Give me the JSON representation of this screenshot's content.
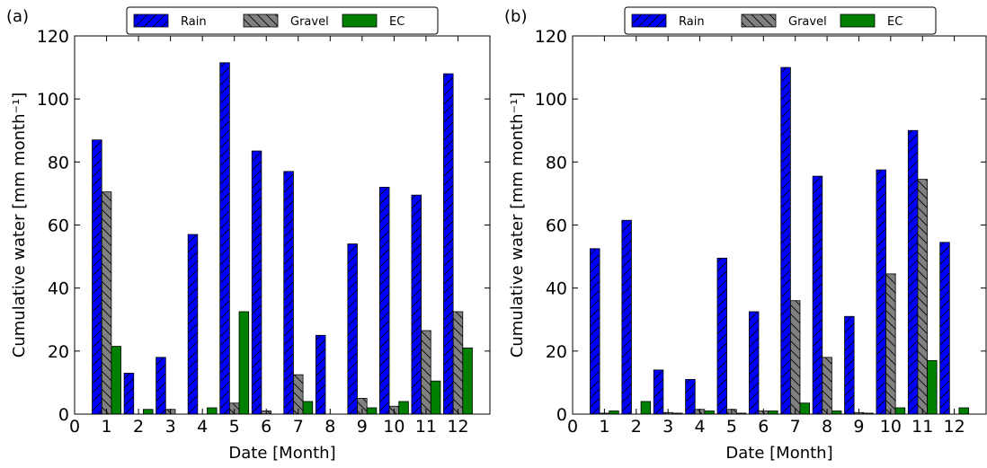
{
  "chart_data": [
    {
      "type": "bar",
      "panel_label": "(a)",
      "xlabel": "Date [Month]",
      "ylabel": "Cumulative water [mm month⁻¹]",
      "xlim": [
        0,
        13
      ],
      "ylim": [
        0,
        120
      ],
      "xticks": [
        "0",
        "1",
        "2",
        "3",
        "4",
        "5",
        "6",
        "7",
        "8",
        "9",
        "10",
        "11",
        "12"
      ],
      "yticks": [
        "0",
        "20",
        "40",
        "60",
        "80",
        "100",
        "120"
      ],
      "categories": [
        1,
        2,
        3,
        4,
        5,
        6,
        7,
        8,
        9,
        10,
        11,
        12
      ],
      "legend_position": "top-center",
      "grid": false,
      "series": [
        {
          "name": "Rain",
          "color": "#0000ff",
          "hatch": "forward",
          "values": [
            87,
            13,
            18,
            57,
            111.5,
            83.5,
            77,
            25,
            54,
            72,
            69.5,
            108
          ]
        },
        {
          "name": "Gravel",
          "color": "#808080",
          "hatch": "back",
          "values": [
            70.5,
            0,
            1.5,
            0,
            3.5,
            1,
            12.5,
            0,
            5,
            2.5,
            26.5,
            32.5
          ]
        },
        {
          "name": "EC",
          "color": "#008000",
          "hatch": "none",
          "values": [
            21.5,
            1.5,
            0,
            2,
            32.5,
            0,
            4,
            0,
            2,
            4,
            10.5,
            21
          ]
        }
      ]
    },
    {
      "type": "bar",
      "panel_label": "(b)",
      "xlabel": "Date [Month]",
      "ylabel": "Cumulative water [mm month⁻¹]",
      "xlim": [
        0,
        13
      ],
      "ylim": [
        0,
        120
      ],
      "xticks": [
        "0",
        "1",
        "2",
        "3",
        "4",
        "5",
        "6",
        "7",
        "8",
        "9",
        "10",
        "11",
        "12"
      ],
      "yticks": [
        "0",
        "20",
        "40",
        "60",
        "80",
        "100",
        "120"
      ],
      "categories": [
        1,
        2,
        3,
        4,
        5,
        6,
        7,
        8,
        9,
        10,
        11,
        12
      ],
      "legend_position": "top-center",
      "grid": false,
      "series": [
        {
          "name": "Rain",
          "color": "#0000ff",
          "hatch": "forward",
          "values": [
            52.5,
            61.5,
            14,
            11,
            49.5,
            32.5,
            110,
            75.5,
            31,
            77.5,
            90,
            54.5
          ]
        },
        {
          "name": "Gravel",
          "color": "#808080",
          "hatch": "back",
          "values": [
            0.3,
            0,
            0.5,
            1.5,
            1.5,
            1,
            36,
            18,
            0.5,
            44.5,
            74.5,
            0
          ]
        },
        {
          "name": "EC",
          "color": "#008000",
          "hatch": "none",
          "values": [
            1,
            4,
            0.3,
            1,
            0.3,
            1,
            3.5,
            1,
            0.3,
            2,
            17,
            2
          ]
        }
      ]
    }
  ]
}
